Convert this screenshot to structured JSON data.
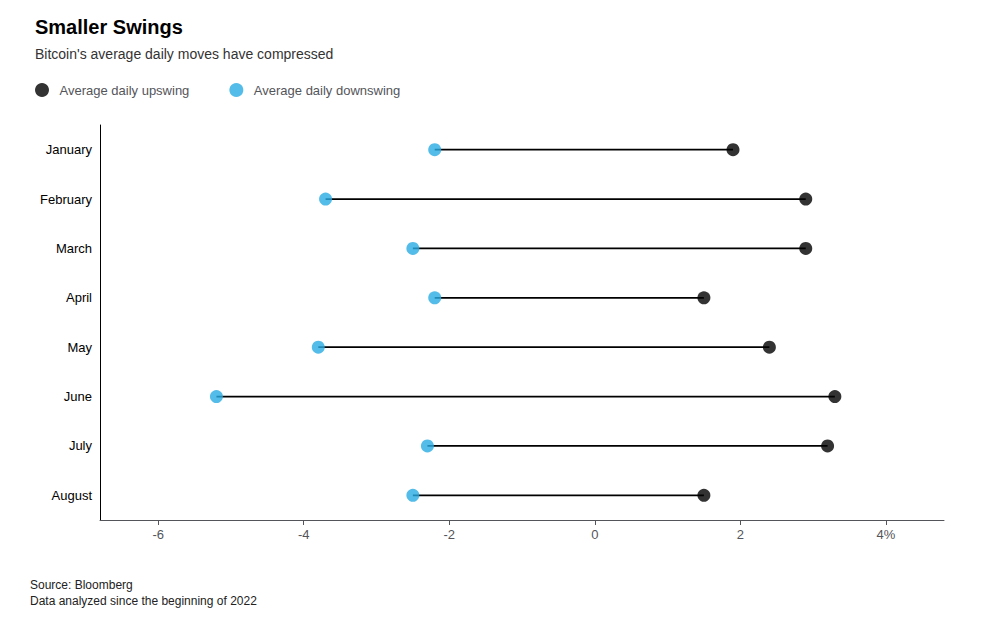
{
  "chart_data": {
    "type": "dumbbell",
    "title": "Smaller Swings",
    "subtitle": "Bitcoin's average daily moves have compressed",
    "categories": [
      "January",
      "February",
      "March",
      "April",
      "May",
      "June",
      "July",
      "August"
    ],
    "series": [
      {
        "name": "Average daily upswing",
        "color": "#000000",
        "values": [
          1.9,
          2.9,
          2.9,
          1.5,
          2.4,
          3.3,
          3.2,
          1.5
        ]
      },
      {
        "name": "Average daily downswing",
        "color": "#29ABE2",
        "values": [
          -2.2,
          -3.7,
          -2.5,
          -2.2,
          -3.8,
          -5.2,
          -2.3,
          -2.5
        ]
      }
    ],
    "color": "#000000",
    "orientation": "horizontal",
    "xlim": [
      -6.8,
      4.8
    ],
    "xticks": [
      -6,
      -4,
      -2,
      0,
      2,
      {
        "value": 4,
        "label": "4%"
      }
    ],
    "grid": false,
    "legend": "upper left",
    "annotations": [
      "Source: Bloomberg\nData analyzed since the beginning of 2022"
    ]
  }
}
